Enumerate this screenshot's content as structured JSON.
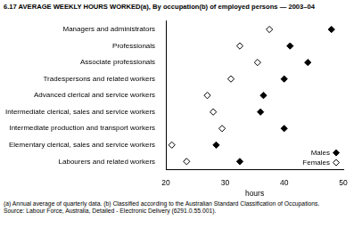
{
  "chart_data": {
    "type": "dot",
    "orientation": "horizontal",
    "title": "6.17 AVERAGE WEEKLY HOURS WORKED(a), By occupation(b) of employed persons — 2003–04",
    "x_label": "hours",
    "categories": [
      "Managers and administrators",
      "Professionals",
      "Associate professionals",
      "Tradespersons and related workers",
      "Advanced clerical and service workers",
      "Intermediate clerical, sales and service workers",
      "Intermediate production and transport workers",
      "Elementary clerical, sales and service workers",
      "Labourers and related workers"
    ],
    "series": [
      {
        "name": "Males",
        "color": "#000000",
        "marker": "diamond",
        "values": [
          48,
          41,
          44,
          40,
          36.5,
          36,
          40,
          28.5,
          32.5
        ]
      },
      {
        "name": "Females",
        "color": "#000000",
        "marker": "diamond-open",
        "values": [
          37.5,
          32.5,
          35.5,
          31,
          27,
          28,
          29.5,
          21,
          23.5
        ]
      }
    ],
    "xlim": [
      20,
      50
    ],
    "xticks": [
      20,
      30,
      40,
      50
    ],
    "grid": false,
    "legend": "lower right",
    "notes": [
      "(a) Annual average of quarterly data.",
      "(b) Classified according to the Australian Standard Classification of Occupations."
    ],
    "source": "Source: Labour Force, Australia, Detailed - Electronic Delivery (6291.0.55.001)."
  }
}
